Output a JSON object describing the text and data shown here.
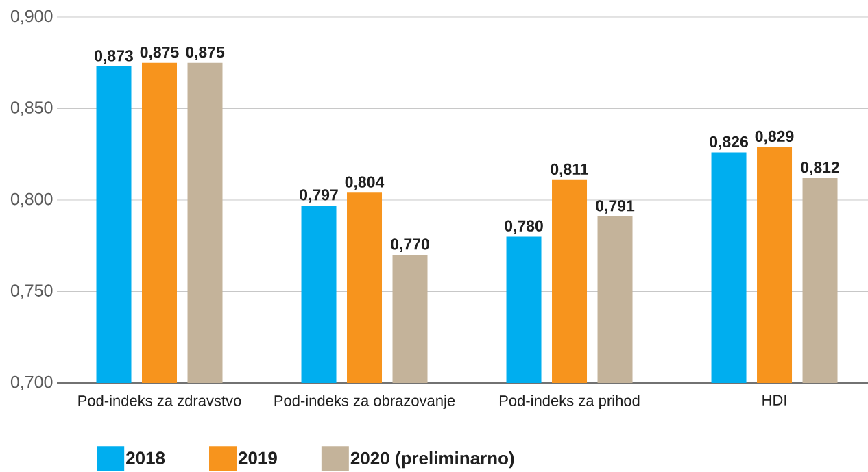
{
  "chart_data": {
    "type": "bar",
    "categories": [
      "Pod-indeks za zdravstvo",
      "Pod-indeks za obrazovanje",
      "Pod-indeks za prihod",
      "HDI"
    ],
    "series": [
      {
        "name": "2018",
        "color": "#00aeef",
        "values": [
          0.873,
          0.797,
          0.78,
          0.826
        ],
        "value_labels": [
          "0,873",
          "0,797",
          "0,780",
          "0,826"
        ]
      },
      {
        "name": "2019",
        "color": "#f7941d",
        "values": [
          0.875,
          0.804,
          0.811,
          0.829
        ],
        "value_labels": [
          "0,875",
          "0,804",
          "0,811",
          "0,829"
        ]
      },
      {
        "name": "2020 (preliminarno)",
        "color": "#c4b39a",
        "values": [
          0.875,
          0.77,
          0.791,
          0.812
        ],
        "value_labels": [
          "0,875",
          "0,770",
          "0,791",
          "0,812"
        ]
      }
    ],
    "ylim": [
      0.7,
      0.9
    ],
    "yticks": [
      {
        "value": 0.7,
        "label": "0,700"
      },
      {
        "value": 0.75,
        "label": "0,750"
      },
      {
        "value": 0.8,
        "label": "0,800"
      },
      {
        "value": 0.85,
        "label": "0,850"
      },
      {
        "value": 0.9,
        "label": "0,900"
      }
    ],
    "grid": "y",
    "legend": "bottom"
  }
}
